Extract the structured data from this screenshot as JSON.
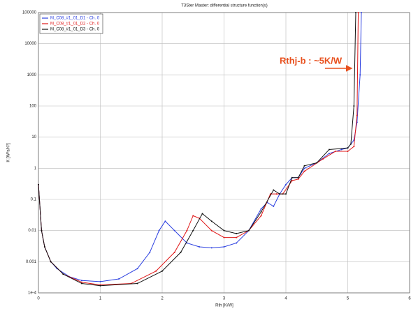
{
  "chart_data": {
    "type": "line",
    "title": "T3Ster Master: differential structure function(s)",
    "xlabel": "Rth [K/W]",
    "ylabel": "K [W²s/K²]",
    "yscale": "log",
    "grid": true,
    "legend": "upper left",
    "annotation": "Rthj-b : ~5K/W",
    "annotation_color": "#e8501e",
    "xlim": [
      0,
      6
    ],
    "xticks": [
      0,
      1,
      2,
      3,
      4,
      5,
      6
    ],
    "ylim": [
      0.0001,
      100000
    ],
    "yticks": [
      {
        "value": 0.0001,
        "label": "1e-4"
      },
      0.001,
      0.01,
      0.1,
      1,
      10,
      100,
      1000,
      10000,
      100000
    ],
    "series": [
      {
        "name": "M_C08_#1_01_D1 - Ch. 0",
        "color": "#2b3fe0",
        "x": [
          0,
          0.05,
          0.1,
          0.2,
          0.3,
          0.5,
          0.7,
          1.0,
          1.3,
          1.6,
          1.8,
          1.95,
          2.05,
          2.2,
          2.4,
          2.6,
          2.8,
          3.0,
          3.2,
          3.4,
          3.6,
          3.7,
          3.8,
          3.9,
          4.0,
          4.1,
          4.2,
          4.3,
          4.5,
          4.7,
          4.9,
          5.0,
          5.1,
          5.15,
          5.2,
          5.22
        ],
        "values": [
          0.3,
          0.01,
          0.003,
          0.001,
          0.0006,
          0.00033,
          0.00025,
          0.00023,
          0.00028,
          0.0006,
          0.002,
          0.01,
          0.02,
          0.01,
          0.004,
          0.003,
          0.0028,
          0.003,
          0.004,
          0.01,
          0.05,
          0.08,
          0.06,
          0.15,
          0.3,
          0.5,
          0.5,
          1.0,
          1.5,
          3,
          4,
          4.5,
          8,
          30,
          1000,
          100000
        ]
      },
      {
        "name": "M_C08_#1_01_D2 - Ch. 0",
        "color": "#e01818",
        "x": [
          0,
          0.05,
          0.1,
          0.2,
          0.4,
          0.7,
          1.0,
          1.5,
          1.9,
          2.2,
          2.4,
          2.5,
          2.6,
          2.8,
          3.0,
          3.2,
          3.4,
          3.6,
          3.75,
          3.85,
          3.95,
          4.1,
          4.2,
          4.3,
          4.6,
          4.8,
          5.0,
          5.1,
          5.15,
          5.17
        ],
        "values": [
          0.3,
          0.01,
          0.003,
          0.001,
          0.0004,
          0.00022,
          0.00018,
          0.0002,
          0.0005,
          0.002,
          0.01,
          0.03,
          0.025,
          0.01,
          0.006,
          0.006,
          0.01,
          0.03,
          0.15,
          0.15,
          0.15,
          0.4,
          0.45,
          0.8,
          2,
          3.5,
          3.5,
          5,
          50,
          100000
        ]
      },
      {
        "name": "M_C08_#1_01_D3 - Ch. 0",
        "color": "#111111",
        "x": [
          0,
          0.05,
          0.1,
          0.2,
          0.4,
          0.7,
          1.0,
          1.6,
          2.0,
          2.3,
          2.5,
          2.65,
          2.8,
          3.0,
          3.2,
          3.4,
          3.6,
          3.8,
          3.9,
          4.0,
          4.1,
          4.2,
          4.3,
          4.5,
          4.7,
          5.0,
          5.05,
          5.1,
          5.13
        ],
        "values": [
          0.3,
          0.01,
          0.003,
          0.001,
          0.0004,
          0.0002,
          0.00017,
          0.0002,
          0.0005,
          0.002,
          0.01,
          0.035,
          0.02,
          0.01,
          0.008,
          0.01,
          0.04,
          0.2,
          0.15,
          0.15,
          0.5,
          0.5,
          1.2,
          1.5,
          4,
          4.5,
          6,
          100,
          100000
        ]
      }
    ]
  }
}
